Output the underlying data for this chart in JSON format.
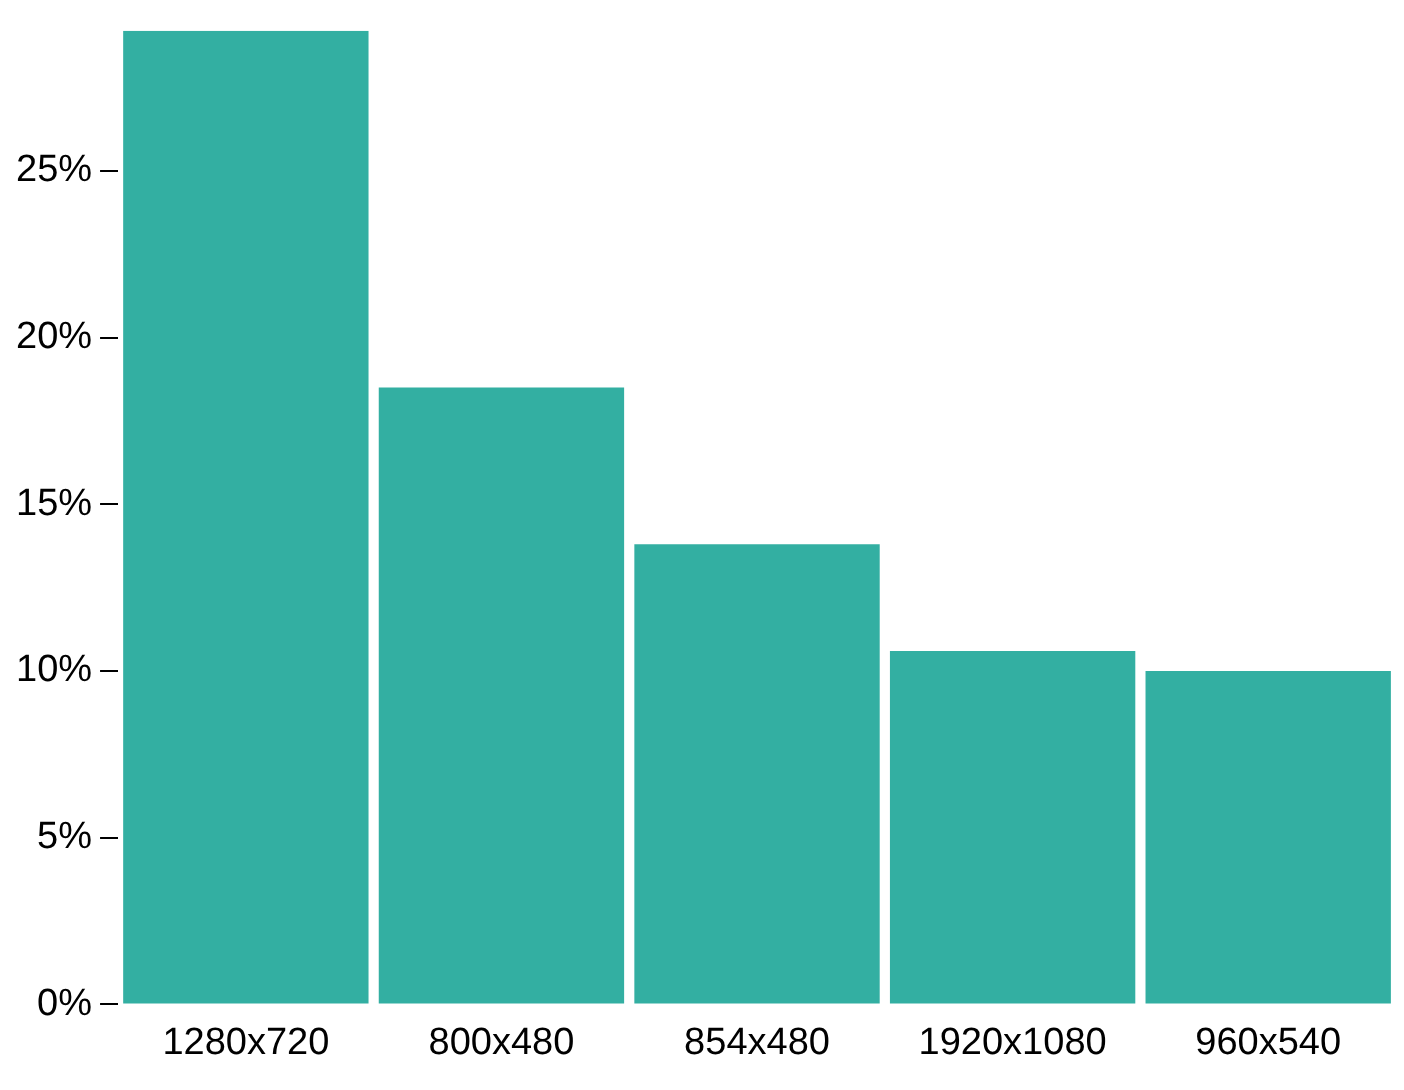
{
  "chart_data": {
    "type": "bar",
    "categories": [
      "1280x720",
      "800x480",
      "854x480",
      "1920x1080",
      "960x540"
    ],
    "values": [
      29.2,
      18.5,
      13.8,
      10.6,
      10.0
    ],
    "color": "#33afa2",
    "ylim": [
      0,
      29.2
    ],
    "yticks": [
      {
        "value": 0,
        "label": "0%"
      },
      {
        "value": 5,
        "label": "5%"
      },
      {
        "value": 10,
        "label": "10%"
      },
      {
        "value": 15,
        "label": "15%"
      },
      {
        "value": 20,
        "label": "20%"
      },
      {
        "value": 25,
        "label": "25%"
      }
    ],
    "grid": false,
    "legend": false
  }
}
